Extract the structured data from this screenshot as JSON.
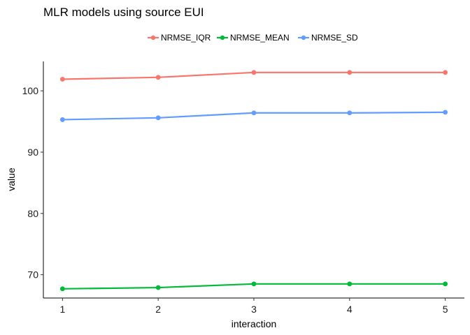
{
  "chart_data": {
    "type": "line",
    "title": "MLR models using source EUI",
    "xlabel": "interaction",
    "ylabel": "value",
    "x": [
      1,
      2,
      3,
      4,
      5
    ],
    "xlim": [
      0.8,
      5.2
    ],
    "ylim": [
      66.2,
      104.8
    ],
    "xticks": [
      "1",
      "2",
      "3",
      "4",
      "5"
    ],
    "yticks": [
      "70",
      "80",
      "90",
      "100"
    ],
    "grid": false,
    "legend_position": "top",
    "series": [
      {
        "name": "NRMSE_IQR",
        "color": "#F8766D",
        "values": [
          101.9,
          102.2,
          103.0,
          103.0,
          103.0
        ]
      },
      {
        "name": "NRMSE_MEAN",
        "color": "#00BA38",
        "values": [
          67.7,
          67.9,
          68.5,
          68.5,
          68.5
        ]
      },
      {
        "name": "NRMSE_SD",
        "color": "#619CFF",
        "values": [
          95.3,
          95.6,
          96.4,
          96.4,
          96.5
        ]
      }
    ]
  }
}
